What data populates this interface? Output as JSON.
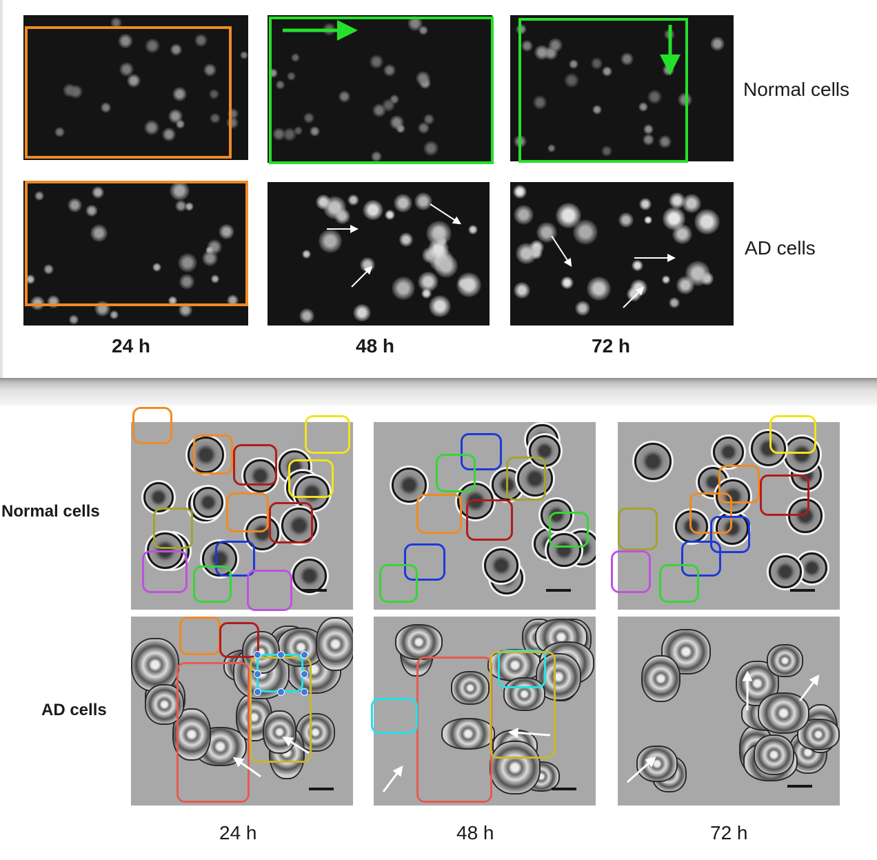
{
  "top_figure": {
    "row_labels": [
      "Normal cells",
      "AD cells"
    ],
    "col_labels": [
      "24 h",
      "48 h",
      "72 h"
    ]
  },
  "bottom_figure": {
    "row_labels": [
      "Normal cells",
      "AD cells"
    ],
    "col_labels": [
      "24 h",
      "48 h",
      "72 h"
    ]
  },
  "colors": {
    "orange": "#f08a24",
    "green": "#25e02a",
    "yellow": "#f2e41c",
    "dark_red": "#b01c1c",
    "olive": "#a3a330",
    "blue": "#1c3ad8",
    "purple": "#c050e0",
    "bright_green": "#36d636",
    "salmon": "#e85a50",
    "cyan": "#26e0e8",
    "arrow_white": "#ffffff"
  }
}
